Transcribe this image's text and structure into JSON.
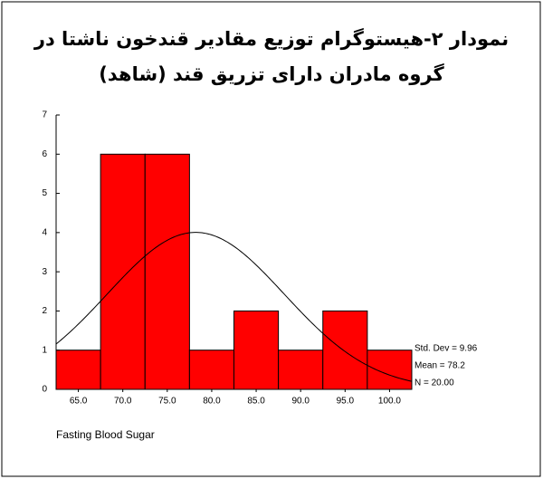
{
  "chart_data": {
    "type": "histogram",
    "title": [
      "نمودار ۲-هیستوگرام توزیع مقادیر قندخون ناشتا در",
      "گروه مادران دارای تزریق قند (شاهد)"
    ],
    "x_label": "Fasting Blood Sugar",
    "bins": [
      62.5,
      67.5,
      72.5,
      77.5,
      82.5,
      87.5,
      92.5,
      97.5,
      102.5
    ],
    "values": [
      1,
      6,
      6,
      1,
      2,
      1,
      2,
      1
    ],
    "color": "#ff0000",
    "xlim": [
      62.5,
      102.5
    ],
    "xticks": [
      {
        "value": 65,
        "label": "65.0"
      },
      {
        "value": 70,
        "label": "70.0"
      },
      {
        "value": 75,
        "label": "75.0"
      },
      {
        "value": 80,
        "label": "80.0"
      },
      {
        "value": 85,
        "label": "85.0"
      },
      {
        "value": 90,
        "label": "90.0"
      },
      {
        "value": 95,
        "label": "95.0"
      },
      {
        "value": 100,
        "label": "100.0"
      }
    ],
    "ylim": [
      0,
      7
    ],
    "yticks": [
      0,
      1,
      2,
      3,
      4,
      5,
      6,
      7
    ],
    "stats": [
      {
        "value": 9.96,
        "label": "Std. Dev = 9.96"
      },
      {
        "value": 78.2,
        "label": "Mean = 78.2"
      },
      {
        "value": 20,
        "label": "N = 20.00"
      }
    ]
  }
}
